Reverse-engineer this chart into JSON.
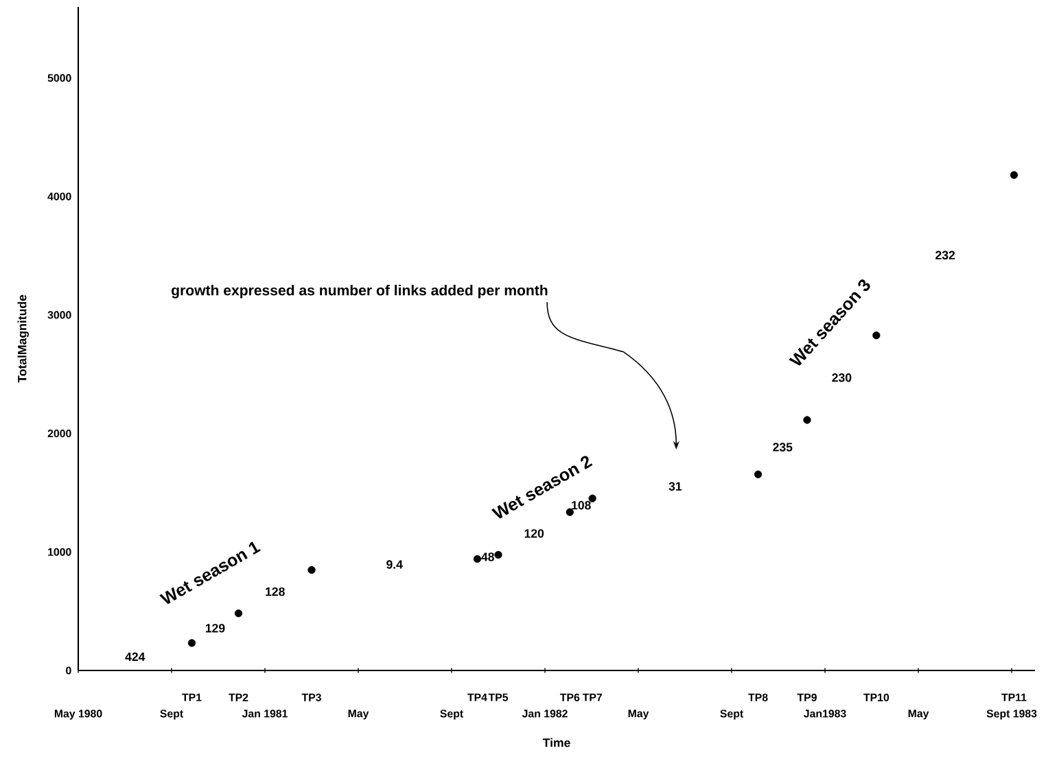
{
  "chart_data": {
    "type": "scatter",
    "xlabel": "Time",
    "ylabel": "TotalMagnitude",
    "x": [
      "1980-09-27",
      "1980-11-27",
      "1981-03-01",
      "1981-10-04",
      "1981-11-01",
      "1982-02-03",
      "1982-03-02",
      "1982-10-05",
      "1982-12-08",
      "1983-03-07",
      "1983-09-04"
    ],
    "series": [
      {
        "color": "#000000",
        "values": [
          232,
          482,
          848,
          941,
          976,
          1336,
          1452,
          1655,
          2114,
          2828,
          4181
        ]
      }
    ],
    "marker": "circle",
    "xlim": [
      "1980-05",
      "1983-10"
    ],
    "xticks": [
      {
        "value": "1980-05",
        "label": "May 1980"
      },
      {
        "value": "1980-09",
        "label": "Sept"
      },
      {
        "value": "1981-01",
        "label": "Jan 1981"
      },
      {
        "value": "1981-05",
        "label": "May"
      },
      {
        "value": "1981-09",
        "label": "Sept"
      },
      {
        "value": "1982-01",
        "label": "Jan 1982"
      },
      {
        "value": "1982-05",
        "label": "May"
      },
      {
        "value": "1982-09",
        "label": "Sept"
      },
      {
        "value": "1983-01",
        "label": "Jan1983"
      },
      {
        "value": "1983-05",
        "label": "May"
      },
      {
        "value": "1983-09",
        "label": "Sept 1983"
      }
    ],
    "ylim": [
      0,
      5600
    ],
    "yticks": [
      0,
      1000,
      2000,
      3000,
      4000,
      5000
    ],
    "annotations": [
      "growth expressed as number of links added per month",
      "424",
      "129",
      "128",
      "9.4",
      "48",
      "120",
      "108",
      "31",
      "235",
      "230",
      "232",
      "Wet season 1",
      "Wet season 2",
      "Wet season 3",
      "TP1",
      "TP2",
      "TP3",
      "TP4",
      "TP5",
      "TP6",
      "TP7",
      "TP8",
      "TP9",
      "TP10",
      "TP11"
    ]
  }
}
